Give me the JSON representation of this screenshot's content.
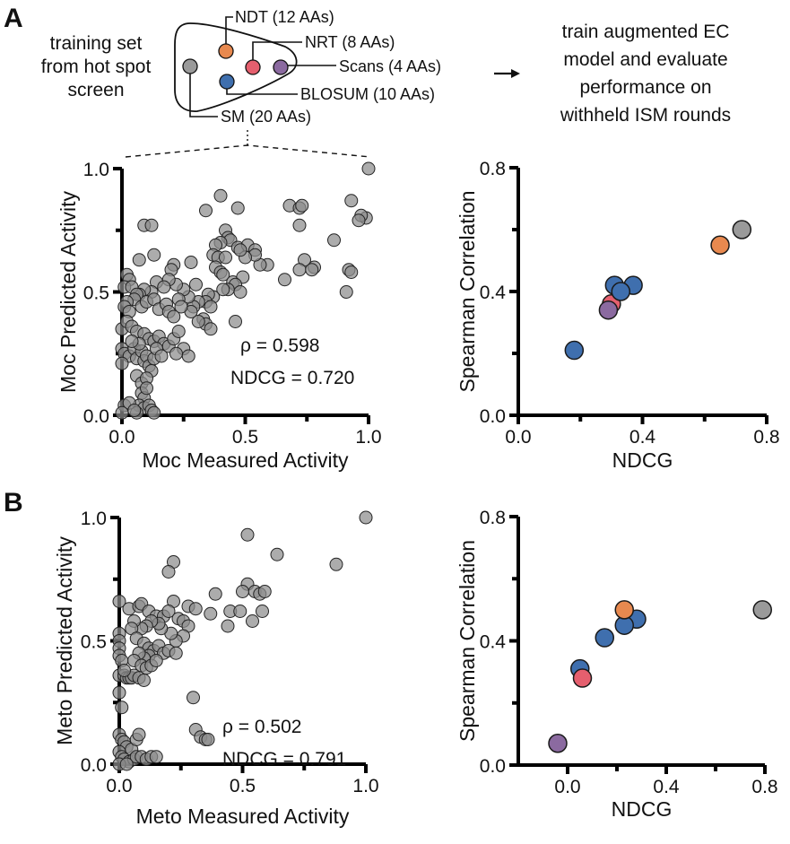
{
  "panels": {
    "A": {
      "letter": "A"
    },
    "B": {
      "letter": "B"
    }
  },
  "schematic": {
    "left_text": [
      "training set",
      "from hot spot",
      "screen"
    ],
    "right_text": [
      "train augmented EC",
      "model and evaluate",
      "performance on",
      "withheld ISM rounds"
    ],
    "arrow_icon": "right-arrow-icon",
    "groups": [
      {
        "key": "NDT",
        "label": "NDT (12 AAs)",
        "color": "#E8894F"
      },
      {
        "key": "NRT",
        "label": "NRT (8 AAs)",
        "color": "#E55F6E"
      },
      {
        "key": "Scans",
        "label": "Scans (4 AAs)",
        "color": "#8B6AA0"
      },
      {
        "key": "BLOSUM",
        "label": "BLOSUM (10 AAs)",
        "color": "#3F6FAE"
      },
      {
        "key": "SM",
        "label": "SM (20 AAs)",
        "color": "#9A9A9A"
      }
    ]
  },
  "chart_data": [
    {
      "id": "moc-scatter",
      "type": "scatter",
      "xlabel": "Moc Measured Activity",
      "ylabel": "Moc Predicted Activity",
      "xlim": [
        0,
        1
      ],
      "ylim": [
        0,
        1
      ],
      "xticks": [
        "0.0",
        "0.5",
        "1.0"
      ],
      "yticks": [
        "0.0",
        "0.5",
        "1.0"
      ],
      "annotations": [
        "ρ = 0.598",
        "NDCG = 0.720"
      ],
      "point_color": "#8C8C8C",
      "points": [
        [
          1.0,
          1.0
        ],
        [
          0.4,
          0.89
        ],
        [
          0.47,
          0.84
        ],
        [
          0.34,
          0.83
        ],
        [
          0.68,
          0.85
        ],
        [
          0.72,
          0.84
        ],
        [
          0.73,
          0.85
        ],
        [
          0.93,
          0.87
        ],
        [
          0.99,
          0.8
        ],
        [
          0.97,
          0.81
        ],
        [
          0.96,
          0.79
        ],
        [
          0.72,
          0.77
        ],
        [
          0.86,
          0.71
        ],
        [
          0.74,
          0.63
        ],
        [
          0.72,
          0.59
        ],
        [
          0.78,
          0.6
        ],
        [
          0.77,
          0.59
        ],
        [
          0.92,
          0.59
        ],
        [
          0.93,
          0.58
        ],
        [
          0.91,
          0.5
        ],
        [
          0.66,
          0.55
        ],
        [
          0.59,
          0.61
        ],
        [
          0.56,
          0.61
        ],
        [
          0.09,
          0.77
        ],
        [
          0.12,
          0.77
        ],
        [
          0.13,
          0.65
        ],
        [
          0.07,
          0.63
        ],
        [
          0.21,
          0.61
        ],
        [
          0.28,
          0.62
        ],
        [
          0.2,
          0.59
        ],
        [
          0.42,
          0.75
        ],
        [
          0.43,
          0.72
        ],
        [
          0.44,
          0.71
        ],
        [
          0.4,
          0.7
        ],
        [
          0.38,
          0.69
        ],
        [
          0.47,
          0.68
        ],
        [
          0.51,
          0.69
        ],
        [
          0.54,
          0.67
        ],
        [
          0.54,
          0.65
        ],
        [
          0.5,
          0.64
        ],
        [
          0.48,
          0.67
        ],
        [
          0.37,
          0.65
        ],
        [
          0.39,
          0.64
        ],
        [
          0.42,
          0.64
        ],
        [
          0.38,
          0.6
        ],
        [
          0.4,
          0.58
        ],
        [
          0.41,
          0.57
        ],
        [
          0.45,
          0.54
        ],
        [
          0.49,
          0.56
        ],
        [
          0.46,
          0.53
        ],
        [
          0.43,
          0.51
        ],
        [
          0.48,
          0.5
        ],
        [
          0.41,
          0.51
        ],
        [
          0.37,
          0.48
        ],
        [
          0.35,
          0.49
        ],
        [
          0.34,
          0.46
        ],
        [
          0.36,
          0.44
        ],
        [
          0.31,
          0.46
        ],
        [
          0.29,
          0.44
        ],
        [
          0.46,
          0.38
        ],
        [
          0.33,
          0.39
        ],
        [
          0.34,
          0.37
        ],
        [
          0.36,
          0.35
        ],
        [
          0.31,
          0.38
        ],
        [
          0.28,
          0.42
        ],
        [
          0.27,
          0.48
        ],
        [
          0.3,
          0.53
        ],
        [
          0.25,
          0.51
        ],
        [
          0.22,
          0.53
        ],
        [
          0.19,
          0.55
        ],
        [
          0.14,
          0.54
        ],
        [
          0.17,
          0.52
        ],
        [
          0.12,
          0.5
        ],
        [
          0.09,
          0.51
        ],
        [
          0.07,
          0.49
        ],
        [
          0.02,
          0.57
        ],
        [
          0.03,
          0.55
        ],
        [
          0.01,
          0.52
        ],
        [
          0.04,
          0.52
        ],
        [
          0.06,
          0.49
        ],
        [
          0.05,
          0.47
        ],
        [
          0.02,
          0.46
        ],
        [
          0.01,
          0.44
        ],
        [
          0.03,
          0.42
        ],
        [
          0.08,
          0.44
        ],
        [
          0.1,
          0.46
        ],
        [
          0.13,
          0.47
        ],
        [
          0.15,
          0.43
        ],
        [
          0.18,
          0.45
        ],
        [
          0.19,
          0.42
        ],
        [
          0.21,
          0.4
        ],
        [
          0.23,
          0.47
        ],
        [
          0.24,
          0.44
        ],
        [
          0.0,
          0.35
        ],
        [
          0.02,
          0.38
        ],
        [
          0.04,
          0.36
        ],
        [
          0.06,
          0.34
        ],
        [
          0.09,
          0.33
        ],
        [
          0.11,
          0.31
        ],
        [
          0.13,
          0.3
        ],
        [
          0.15,
          0.32
        ],
        [
          0.17,
          0.29
        ],
        [
          0.19,
          0.28
        ],
        [
          0.21,
          0.31
        ],
        [
          0.23,
          0.34
        ],
        [
          0.25,
          0.27
        ],
        [
          0.27,
          0.24
        ],
        [
          0.22,
          0.25
        ],
        [
          0.0,
          0.27
        ],
        [
          0.01,
          0.25
        ],
        [
          0.03,
          0.24
        ],
        [
          0.05,
          0.27
        ],
        [
          0.06,
          0.23
        ],
        [
          0.08,
          0.26
        ],
        [
          0.09,
          0.22
        ],
        [
          0.1,
          0.24
        ],
        [
          0.11,
          0.2
        ],
        [
          0.12,
          0.18
        ],
        [
          0.13,
          0.23
        ],
        [
          0.14,
          0.27
        ],
        [
          0.16,
          0.24
        ],
        [
          0.07,
          0.29
        ],
        [
          0.04,
          0.3
        ],
        [
          0.0,
          0.21
        ],
        [
          0.06,
          0.16
        ],
        [
          0.08,
          0.13
        ],
        [
          0.1,
          0.15
        ],
        [
          0.08,
          0.09
        ],
        [
          0.09,
          0.07
        ],
        [
          0.1,
          0.11
        ],
        [
          0.07,
          0.04
        ],
        [
          0.09,
          0.03
        ],
        [
          0.11,
          0.04
        ],
        [
          0.12,
          0.02
        ],
        [
          0.06,
          0.01
        ],
        [
          0.01,
          0.04
        ],
        [
          0.03,
          0.05
        ],
        [
          0.0,
          0.01
        ],
        [
          0.13,
          0.01
        ],
        [
          0.05,
          0.02
        ]
      ]
    },
    {
      "id": "moc-summary",
      "type": "scatter",
      "xlabel": "NDCG",
      "ylabel": "Spearman Correlation",
      "xlim": [
        0,
        0.8
      ],
      "ylim": [
        0,
        0.8
      ],
      "xticks": [
        "0.0",
        "0.4",
        "0.8"
      ],
      "yticks": [
        "0.0",
        "0.4",
        "0.8"
      ],
      "points": [
        {
          "group": "SM",
          "x": 0.72,
          "y": 0.6
        },
        {
          "group": "NDT",
          "x": 0.65,
          "y": 0.55
        },
        {
          "group": "BLOSUM",
          "x": 0.18,
          "y": 0.21
        },
        {
          "group": "BLOSUM",
          "x": 0.31,
          "y": 0.42
        },
        {
          "group": "BLOSUM",
          "x": 0.37,
          "y": 0.42
        },
        {
          "group": "NRT",
          "x": 0.3,
          "y": 0.36
        },
        {
          "group": "BLOSUM",
          "x": 0.33,
          "y": 0.4
        },
        {
          "group": "Scans",
          "x": 0.29,
          "y": 0.34
        }
      ]
    },
    {
      "id": "meto-scatter",
      "type": "scatter",
      "xlabel": "Meto Measured Activity",
      "ylabel": "Meto Predicted Activity",
      "xlim": [
        0,
        1
      ],
      "ylim": [
        0,
        1
      ],
      "xticks": [
        "0.0",
        "0.5",
        "1.0"
      ],
      "yticks": [
        "0.0",
        "0.5",
        "1.0"
      ],
      "annotations": [
        "ρ = 0.502",
        "NDCG = 0.791"
      ],
      "point_color": "#8C8C8C",
      "points": [
        [
          1.0,
          1.0
        ],
        [
          0.52,
          0.93
        ],
        [
          0.64,
          0.85
        ],
        [
          0.88,
          0.81
        ],
        [
          0.22,
          0.82
        ],
        [
          0.2,
          0.78
        ],
        [
          0.52,
          0.73
        ],
        [
          0.5,
          0.7
        ],
        [
          0.55,
          0.7
        ],
        [
          0.57,
          0.69
        ],
        [
          0.59,
          0.7
        ],
        [
          0.39,
          0.69
        ],
        [
          0.22,
          0.66
        ],
        [
          0.28,
          0.64
        ],
        [
          0.31,
          0.63
        ],
        [
          0.37,
          0.61
        ],
        [
          0.45,
          0.62
        ],
        [
          0.49,
          0.62
        ],
        [
          0.58,
          0.62
        ],
        [
          0.54,
          0.58
        ],
        [
          0.44,
          0.56
        ],
        [
          0.0,
          0.66
        ],
        [
          0.04,
          0.63
        ],
        [
          0.08,
          0.64
        ],
        [
          0.09,
          0.65
        ],
        [
          0.12,
          0.62
        ],
        [
          0.15,
          0.6
        ],
        [
          0.18,
          0.6
        ],
        [
          0.2,
          0.62
        ],
        [
          0.24,
          0.59
        ],
        [
          0.26,
          0.58
        ],
        [
          0.28,
          0.56
        ],
        [
          0.26,
          0.52
        ],
        [
          0.23,
          0.5
        ],
        [
          0.21,
          0.53
        ],
        [
          0.17,
          0.55
        ],
        [
          0.16,
          0.57
        ],
        [
          0.13,
          0.58
        ],
        [
          0.11,
          0.56
        ],
        [
          0.09,
          0.55
        ],
        [
          0.06,
          0.58
        ],
        [
          0.05,
          0.55
        ],
        [
          0.07,
          0.51
        ],
        [
          0.1,
          0.49
        ],
        [
          0.12,
          0.47
        ],
        [
          0.14,
          0.46
        ],
        [
          0.16,
          0.48
        ],
        [
          0.18,
          0.45
        ],
        [
          0.12,
          0.44
        ],
        [
          0.1,
          0.43
        ],
        [
          0.08,
          0.45
        ],
        [
          0.06,
          0.42
        ],
        [
          0.09,
          0.4
        ],
        [
          0.11,
          0.39
        ],
        [
          0.13,
          0.4
        ],
        [
          0.15,
          0.42
        ],
        [
          0.2,
          0.46
        ],
        [
          0.23,
          0.45
        ],
        [
          0.0,
          0.53
        ],
        [
          0.0,
          0.5
        ],
        [
          0.0,
          0.47
        ],
        [
          0.0,
          0.44
        ],
        [
          0.01,
          0.42
        ],
        [
          0.0,
          0.36
        ],
        [
          0.02,
          0.36
        ],
        [
          0.03,
          0.35
        ],
        [
          0.04,
          0.35
        ],
        [
          0.05,
          0.35
        ],
        [
          0.06,
          0.36
        ],
        [
          0.08,
          0.35
        ],
        [
          0.1,
          0.34
        ],
        [
          0.02,
          0.38
        ],
        [
          0.0,
          0.29
        ],
        [
          0.01,
          0.23
        ],
        [
          0.3,
          0.27
        ],
        [
          0.31,
          0.14
        ],
        [
          0.33,
          0.11
        ],
        [
          0.35,
          0.1
        ],
        [
          0.36,
          0.1
        ],
        [
          0.0,
          0.12
        ],
        [
          0.01,
          0.1
        ],
        [
          0.02,
          0.09
        ],
        [
          0.03,
          0.07
        ],
        [
          0.05,
          0.06
        ],
        [
          0.07,
          0.1
        ],
        [
          0.08,
          0.12
        ],
        [
          0.0,
          0.05
        ],
        [
          0.01,
          0.03
        ],
        [
          0.02,
          0.02
        ],
        [
          0.04,
          0.01
        ],
        [
          0.06,
          0.02
        ],
        [
          0.07,
          0.03
        ],
        [
          0.09,
          0.03
        ],
        [
          0.11,
          0.02
        ],
        [
          0.13,
          0.03
        ],
        [
          0.15,
          0.03
        ],
        [
          0.0,
          0.0
        ],
        [
          0.03,
          0.0
        ]
      ]
    },
    {
      "id": "meto-summary",
      "type": "scatter",
      "xlabel": "NDCG",
      "ylabel": "Spearman Correlation",
      "xlim": [
        -0.2,
        0.8
      ],
      "ylim": [
        0,
        0.8
      ],
      "xticks": [
        "0.0",
        "0.4",
        "0.8"
      ],
      "yticks": [
        "0.0",
        "0.4",
        "0.8"
      ],
      "points": [
        {
          "group": "SM",
          "x": 0.79,
          "y": 0.5
        },
        {
          "group": "BLOSUM",
          "x": 0.28,
          "y": 0.47
        },
        {
          "group": "BLOSUM",
          "x": 0.23,
          "y": 0.45
        },
        {
          "group": "NDT",
          "x": 0.23,
          "y": 0.5
        },
        {
          "group": "BLOSUM",
          "x": 0.15,
          "y": 0.41
        },
        {
          "group": "BLOSUM",
          "x": 0.05,
          "y": 0.31
        },
        {
          "group": "NRT",
          "x": 0.06,
          "y": 0.28
        },
        {
          "group": "Scans",
          "x": -0.04,
          "y": 0.07
        }
      ]
    }
  ]
}
